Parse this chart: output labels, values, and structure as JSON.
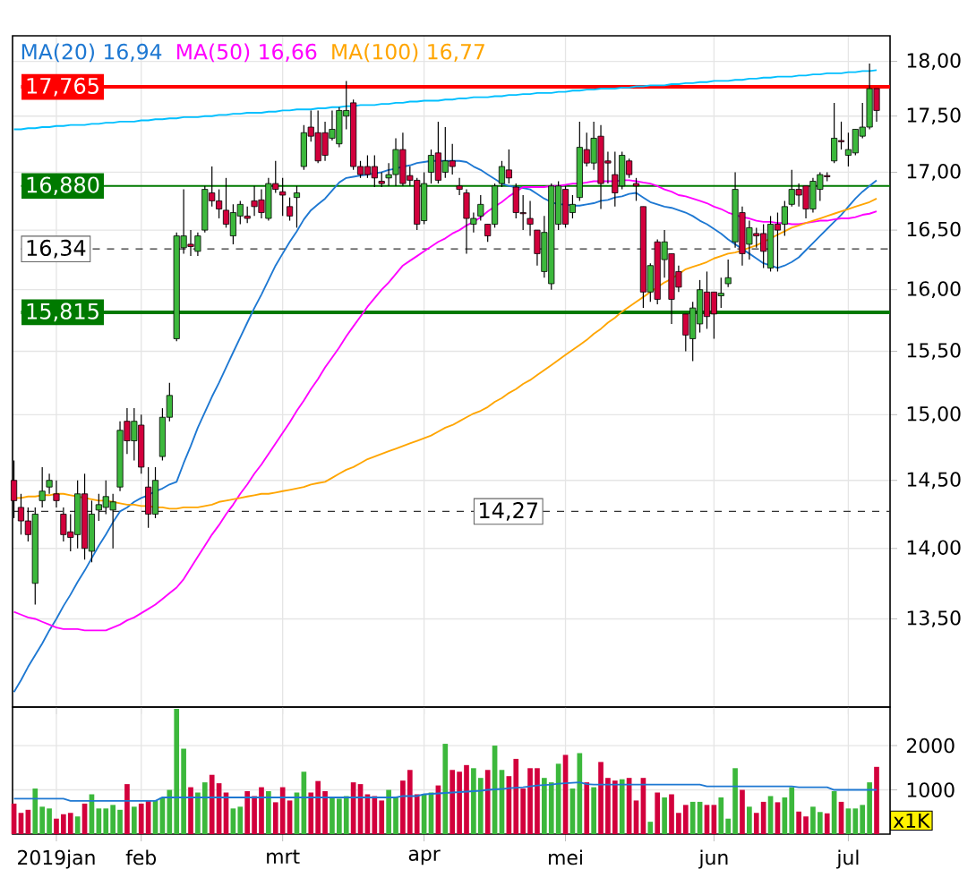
{
  "chart_data": [
    {
      "type": "candlestick",
      "log": true,
      "grid": true,
      "legend": "top left",
      "tick_labels": "y",
      "categories": [
        null,
        null,
        null,
        null,
        null,
        null,
        null,
        null,
        null,
        null,
        null,
        null,
        null,
        null,
        null,
        null,
        null,
        null,
        null,
        null,
        null,
        null,
        null,
        null,
        null,
        null,
        null,
        null,
        null,
        null,
        null,
        null,
        null,
        null,
        null,
        null,
        null,
        null,
        null,
        null,
        null,
        null,
        null,
        null,
        null,
        null,
        null,
        null,
        null,
        null,
        null,
        null,
        null,
        null,
        null,
        null,
        null,
        null,
        null,
        null,
        null,
        null,
        null,
        null,
        null,
        null,
        null,
        null,
        null,
        null,
        null,
        null,
        null,
        null,
        null,
        null,
        null,
        null,
        null,
        null,
        null,
        null,
        null,
        null,
        null,
        null,
        null,
        null,
        null,
        null,
        null,
        null,
        null,
        null,
        null,
        null,
        null,
        null,
        null,
        null,
        null,
        null,
        null,
        null,
        null,
        null,
        null,
        null,
        null,
        null,
        null,
        null,
        null,
        null,
        null,
        null,
        null,
        null,
        null,
        null,
        null,
        null,
        null
      ],
      "ohlc": [
        [
          14.5,
          14.65,
          14.22,
          14.35
        ],
        [
          14.3,
          14.4,
          14.1,
          14.2
        ],
        [
          14.2,
          14.3,
          14.05,
          14.1
        ],
        [
          13.75,
          14.3,
          13.6,
          14.25
        ],
        [
          14.35,
          14.6,
          14.3,
          14.42
        ],
        [
          14.45,
          14.55,
          14.4,
          14.5
        ],
        [
          14.4,
          14.5,
          14.3,
          14.35
        ],
        [
          14.25,
          14.3,
          14.05,
          14.1
        ],
        [
          14.12,
          14.25,
          13.98,
          14.08
        ],
        [
          14.1,
          14.5,
          14.0,
          14.4
        ],
        [
          14.4,
          14.55,
          13.92,
          14.0
        ],
        [
          13.98,
          14.35,
          13.9,
          14.25
        ],
        [
          14.28,
          14.4,
          14.2,
          14.32
        ],
        [
          14.3,
          14.5,
          14.25,
          14.38
        ],
        [
          14.28,
          14.4,
          14.0,
          14.34
        ],
        [
          14.45,
          14.95,
          14.42,
          14.88
        ],
        [
          14.95,
          15.05,
          14.7,
          14.8
        ],
        [
          14.8,
          15.05,
          14.65,
          14.95
        ],
        [
          14.92,
          15.0,
          14.55,
          14.6
        ],
        [
          14.45,
          14.6,
          14.15,
          14.25
        ],
        [
          14.25,
          14.6,
          14.22,
          14.5
        ],
        [
          14.68,
          15.05,
          14.65,
          14.98
        ],
        [
          14.98,
          15.25,
          14.95,
          15.15
        ],
        [
          15.6,
          16.48,
          15.58,
          16.45
        ],
        [
          16.35,
          16.85,
          16.3,
          16.45
        ],
        [
          16.38,
          16.5,
          16.28,
          16.36
        ],
        [
          16.32,
          16.48,
          16.28,
          16.45
        ],
        [
          16.5,
          16.88,
          16.48,
          16.85
        ],
        [
          16.82,
          17.05,
          16.7,
          16.75
        ],
        [
          16.75,
          16.85,
          16.6,
          16.68
        ],
        [
          16.67,
          16.95,
          16.52,
          16.55
        ],
        [
          16.45,
          16.72,
          16.38,
          16.65
        ],
        [
          16.62,
          16.75,
          16.55,
          16.72
        ],
        [
          16.62,
          16.7,
          16.56,
          16.6
        ],
        [
          16.75,
          16.88,
          16.62,
          16.7
        ],
        [
          16.76,
          16.85,
          16.6,
          16.65
        ],
        [
          16.6,
          16.95,
          16.58,
          16.9
        ],
        [
          16.9,
          17.1,
          16.82,
          16.85
        ],
        [
          16.83,
          16.95,
          16.62,
          16.8
        ],
        [
          16.7,
          16.78,
          16.58,
          16.62
        ],
        [
          16.78,
          16.88,
          16.52,
          16.82
        ],
        [
          17.05,
          17.42,
          17.02,
          17.35
        ],
        [
          17.4,
          17.55,
          17.27,
          17.32
        ],
        [
          17.35,
          17.55,
          17.08,
          17.1
        ],
        [
          17.35,
          17.45,
          17.1,
          17.15
        ],
        [
          17.3,
          17.55,
          17.28,
          17.38
        ],
        [
          17.25,
          17.58,
          17.22,
          17.55
        ],
        [
          17.5,
          17.82,
          17.38,
          17.55
        ],
        [
          17.62,
          17.65,
          17.02,
          17.05
        ],
        [
          17.05,
          17.1,
          16.95,
          16.98
        ],
        [
          17.05,
          17.15,
          16.95,
          16.98
        ],
        [
          17.05,
          17.15,
          16.87,
          16.95
        ],
        [
          16.92,
          17.0,
          16.87,
          16.9
        ],
        [
          16.95,
          17.08,
          16.88,
          16.98
        ],
        [
          16.98,
          17.3,
          16.88,
          17.2
        ],
        [
          17.2,
          17.35,
          16.88,
          16.9
        ],
        [
          16.97,
          17.05,
          16.88,
          16.93
        ],
        [
          16.93,
          16.95,
          16.5,
          16.55
        ],
        [
          16.58,
          17.0,
          16.55,
          16.9
        ],
        [
          17.0,
          17.2,
          16.9,
          17.15
        ],
        [
          17.17,
          17.45,
          16.9,
          16.93
        ],
        [
          17.0,
          17.4,
          16.95,
          17.1
        ],
        [
          17.1,
          17.25,
          16.98,
          17.05
        ],
        [
          16.88,
          16.95,
          16.8,
          16.85
        ],
        [
          16.82,
          16.85,
          16.3,
          16.6
        ],
        [
          16.55,
          16.65,
          16.48,
          16.6
        ],
        [
          16.62,
          16.8,
          16.58,
          16.72
        ],
        [
          16.55,
          16.55,
          16.4,
          16.45
        ],
        [
          16.55,
          16.9,
          16.52,
          16.88
        ],
        [
          16.9,
          17.1,
          16.87,
          17.05
        ],
        [
          17.02,
          17.2,
          16.9,
          16.95
        ],
        [
          16.87,
          16.9,
          16.6,
          16.65
        ],
        [
          16.65,
          16.8,
          16.5,
          16.64
        ],
        [
          16.6,
          16.75,
          16.45,
          16.55
        ],
        [
          16.5,
          16.5,
          16.2,
          16.3
        ],
        [
          16.15,
          16.62,
          16.1,
          16.48
        ],
        [
          16.05,
          16.9,
          16.0,
          16.88
        ],
        [
          16.55,
          16.92,
          16.5,
          16.88
        ],
        [
          16.85,
          16.88,
          16.52,
          16.55
        ],
        [
          16.65,
          16.8,
          16.6,
          16.72
        ],
        [
          16.78,
          17.45,
          16.75,
          17.22
        ],
        [
          17.2,
          17.35,
          17.05,
          17.08
        ],
        [
          17.08,
          17.45,
          17.02,
          17.3
        ],
        [
          17.32,
          17.42,
          16.68,
          16.9
        ],
        [
          17.1,
          17.18,
          16.9,
          17.08
        ],
        [
          16.98,
          17.18,
          16.7,
          16.82
        ],
        [
          16.88,
          17.18,
          16.85,
          17.15
        ],
        [
          17.1,
          17.12,
          16.95,
          16.98
        ],
        [
          16.9,
          16.95,
          16.75,
          16.88
        ],
        [
          16.7,
          16.7,
          15.85,
          15.98
        ],
        [
          15.98,
          16.22,
          15.9,
          16.2
        ],
        [
          16.4,
          16.42,
          15.88,
          15.92
        ],
        [
          16.25,
          16.5,
          16.1,
          16.4
        ],
        [
          16.3,
          16.3,
          15.72,
          15.92
        ],
        [
          16.15,
          16.2,
          15.98,
          16.02
        ],
        [
          15.8,
          15.8,
          15.5,
          15.63
        ],
        [
          15.6,
          15.9,
          15.42,
          15.85
        ],
        [
          15.72,
          16.08,
          15.65,
          16.0
        ],
        [
          15.98,
          16.15,
          15.68,
          15.78
        ],
        [
          15.98,
          15.98,
          15.6,
          15.8
        ],
        [
          15.95,
          16.1,
          15.85,
          15.97
        ],
        [
          16.05,
          16.25,
          16.02,
          16.1
        ],
        [
          16.4,
          17.0,
          16.35,
          16.85
        ],
        [
          16.65,
          16.7,
          16.2,
          16.3
        ],
        [
          16.38,
          16.58,
          16.25,
          16.52
        ],
        [
          16.47,
          16.52,
          16.35,
          16.45
        ],
        [
          16.47,
          16.55,
          16.18,
          16.32
        ],
        [
          16.18,
          16.62,
          16.15,
          16.55
        ],
        [
          16.55,
          16.65,
          16.15,
          16.5
        ],
        [
          16.55,
          16.75,
          16.45,
          16.7
        ],
        [
          16.72,
          17.02,
          16.7,
          16.85
        ],
        [
          16.85,
          16.9,
          16.7,
          16.8
        ],
        [
          16.88,
          16.88,
          16.6,
          16.68
        ],
        [
          16.68,
          16.95,
          16.65,
          16.92
        ],
        [
          16.85,
          17.0,
          16.75,
          16.98
        ],
        [
          16.97,
          17.0,
          16.92,
          16.96
        ],
        [
          17.1,
          17.62,
          17.08,
          17.3
        ],
        [
          17.28,
          17.45,
          17.2,
          17.27
        ],
        [
          17.15,
          17.35,
          17.05,
          17.2
        ],
        [
          17.17,
          17.38,
          17.15,
          17.38
        ],
        [
          17.32,
          17.62,
          17.3,
          17.4
        ],
        [
          17.4,
          17.98,
          17.38,
          17.75
        ],
        [
          17.75,
          17.75,
          17.45,
          17.55
        ]
      ],
      "colors": [
        "#d2003c",
        "#d2003c",
        "#d2003c",
        "#3cb83c",
        "#3cb83c",
        "#3cb83c",
        "#d2003c",
        "#d2003c",
        "#d2003c",
        "#3cb83c",
        "#d2003c",
        "#3cb83c",
        "#3cb83c",
        "#3cb83c",
        "#3cb83c",
        "#3cb83c",
        "#d2003c",
        "#3cb83c",
        "#d2003c",
        "#d2003c",
        "#3cb83c",
        "#3cb83c",
        "#3cb83c",
        "#3cb83c",
        "#3cb83c",
        "#d2003c",
        "#3cb83c",
        "#3cb83c",
        "#d2003c",
        "#d2003c",
        "#d2003c",
        "#3cb83c",
        "#3cb83c",
        "#d2003c",
        "#d2003c",
        "#d2003c",
        "#3cb83c",
        "#d2003c",
        "#d2003c",
        "#d2003c",
        "#3cb83c",
        "#3cb83c",
        "#d2003c",
        "#d2003c",
        "#d2003c",
        "#3cb83c",
        "#3cb83c",
        "#3cb83c",
        "#d2003c",
        "#d2003c",
        "#d2003c",
        "#d2003c",
        "#d2003c",
        "#3cb83c",
        "#3cb83c",
        "#d2003c",
        "#d2003c",
        "#d2003c",
        "#3cb83c",
        "#3cb83c",
        "#d2003c",
        "#3cb83c",
        "#d2003c",
        "#d2003c",
        "#d2003c",
        "#3cb83c",
        "#3cb83c",
        "#d2003c",
        "#3cb83c",
        "#3cb83c",
        "#d2003c",
        "#d2003c",
        "#d2003c",
        "#d2003c",
        "#d2003c",
        "#3cb83c",
        "#3cb83c",
        "#3cb83c",
        "#d2003c",
        "#3cb83c",
        "#3cb83c",
        "#d2003c",
        "#3cb83c",
        "#d2003c",
        "#d2003c",
        "#d2003c",
        "#3cb83c",
        "#d2003c",
        "#d2003c",
        "#d2003c",
        "#3cb83c",
        "#d2003c",
        "#3cb83c",
        "#d2003c",
        "#d2003c",
        "#d2003c",
        "#3cb83c",
        "#3cb83c",
        "#d2003c",
        "#d2003c",
        "#3cb83c",
        "#3cb83c",
        "#3cb83c",
        "#d2003c",
        "#3cb83c",
        "#d2003c",
        "#d2003c",
        "#3cb83c",
        "#d2003c",
        "#3cb83c",
        "#3cb83c",
        "#d2003c",
        "#d2003c",
        "#3cb83c",
        "#3cb83c",
        "#d2003c",
        "#3cb83c",
        "#d2003c",
        "#3cb83c",
        "#3cb83c",
        "#3cb83c",
        "#3cb83c",
        "#d2003c"
      ],
      "series": [
        {
          "type": "line",
          "name": "MA(20) 16,94",
          "color": "#1e78d2",
          "values": [
            13.0,
            13.08,
            13.17,
            13.25,
            13.33,
            13.42,
            13.5,
            13.59,
            13.67,
            13.76,
            13.84,
            13.93,
            14.02,
            14.1,
            14.19,
            14.27,
            14.3,
            14.34,
            14.37,
            14.39,
            14.42,
            14.44,
            14.47,
            14.49,
            14.63,
            14.76,
            14.9,
            15.02,
            15.14,
            15.25,
            15.37,
            15.49,
            15.61,
            15.73,
            15.85,
            15.96,
            16.08,
            16.2,
            16.3,
            16.4,
            16.49,
            16.59,
            16.67,
            16.72,
            16.77,
            16.84,
            16.91,
            16.95,
            16.96,
            16.97,
            16.98,
            16.99,
            17.0,
            17.02,
            17.03,
            17.05,
            17.06,
            17.08,
            17.09,
            17.1,
            17.1,
            17.1,
            17.1,
            17.1,
            17.09,
            17.05,
            17.02,
            16.98,
            16.94,
            16.9,
            16.88,
            16.87,
            16.86,
            16.85,
            16.81,
            16.77,
            16.74,
            16.72,
            16.72,
            16.71,
            16.71,
            16.72,
            16.73,
            16.75,
            16.76,
            16.78,
            16.79,
            16.81,
            16.82,
            16.78,
            16.74,
            16.72,
            16.7,
            16.69,
            16.67,
            16.65,
            16.62,
            16.58,
            16.55,
            16.51,
            16.47,
            16.42,
            16.38,
            16.34,
            16.3,
            16.26,
            16.22,
            16.2,
            16.18,
            16.2,
            16.23,
            16.27,
            16.33,
            16.39,
            16.45,
            16.51,
            16.57,
            16.63,
            16.7,
            16.77,
            16.83,
            16.88,
            16.93
          ]
        },
        {
          "type": "line",
          "name": "MA(50) 16,66",
          "color": "#ff00ff",
          "values": [
            13.55,
            13.53,
            13.51,
            13.5,
            13.48,
            13.46,
            13.44,
            13.43,
            13.43,
            13.43,
            13.42,
            13.42,
            13.42,
            13.42,
            13.44,
            13.46,
            13.49,
            13.51,
            13.54,
            13.57,
            13.6,
            13.64,
            13.68,
            13.72,
            13.78,
            13.86,
            13.94,
            14.02,
            14.1,
            14.17,
            14.25,
            14.32,
            14.4,
            14.47,
            14.55,
            14.62,
            14.7,
            14.78,
            14.86,
            14.94,
            15.03,
            15.11,
            15.2,
            15.28,
            15.37,
            15.45,
            15.53,
            15.62,
            15.7,
            15.78,
            15.86,
            15.93,
            16.0,
            16.06,
            16.13,
            16.2,
            16.24,
            16.28,
            16.32,
            16.36,
            16.4,
            16.43,
            16.47,
            16.5,
            16.54,
            16.57,
            16.61,
            16.66,
            16.7,
            16.74,
            16.79,
            16.83,
            16.87,
            16.87,
            16.87,
            16.87,
            16.88,
            16.88,
            16.89,
            16.9,
            16.9,
            16.91,
            16.92,
            16.92,
            16.92,
            16.92,
            16.93,
            16.93,
            16.92,
            16.91,
            16.9,
            16.88,
            16.85,
            16.83,
            16.8,
            16.79,
            16.77,
            16.75,
            16.73,
            16.7,
            16.68,
            16.65,
            16.63,
            16.61,
            16.6,
            16.58,
            16.57,
            16.57,
            16.56,
            16.56,
            16.55,
            16.55,
            16.56,
            16.57,
            16.58,
            16.58,
            16.59,
            16.6,
            16.6,
            16.61,
            16.63,
            16.64,
            16.66
          ]
        },
        {
          "type": "line",
          "name": "MA(100) 16,77",
          "color": "#ffa500",
          "values": [
            14.37,
            14.37,
            14.38,
            14.38,
            14.39,
            14.39,
            14.4,
            14.4,
            14.39,
            14.38,
            14.37,
            14.36,
            14.35,
            14.35,
            14.34,
            14.33,
            14.32,
            14.32,
            14.31,
            14.31,
            14.3,
            14.3,
            14.29,
            14.29,
            14.3,
            14.3,
            14.3,
            14.31,
            14.32,
            14.34,
            14.35,
            14.36,
            14.37,
            14.38,
            14.39,
            14.4,
            14.4,
            14.41,
            14.42,
            14.43,
            14.44,
            14.45,
            14.47,
            14.48,
            14.49,
            14.52,
            14.55,
            14.58,
            14.6,
            14.63,
            14.66,
            14.68,
            14.7,
            14.72,
            14.74,
            14.76,
            14.78,
            14.8,
            14.82,
            14.84,
            14.87,
            14.9,
            14.92,
            14.95,
            14.98,
            15.01,
            15.03,
            15.06,
            15.1,
            15.13,
            15.17,
            15.2,
            15.24,
            15.27,
            15.31,
            15.35,
            15.39,
            15.43,
            15.47,
            15.51,
            15.55,
            15.59,
            15.64,
            15.68,
            15.73,
            15.77,
            15.82,
            15.86,
            15.9,
            15.94,
            15.98,
            16.02,
            16.06,
            16.09,
            16.13,
            16.17,
            16.19,
            16.21,
            16.23,
            16.26,
            16.28,
            16.3,
            16.31,
            16.33,
            16.35,
            16.37,
            16.4,
            16.43,
            16.46,
            16.49,
            16.52,
            16.54,
            16.56,
            16.58,
            16.6,
            16.62,
            16.64,
            16.66,
            16.68,
            16.7,
            16.72,
            16.74,
            16.77
          ]
        },
        {
          "type": "line",
          "color": "#00bfff",
          "values": [
            17.38,
            17.38,
            17.39,
            17.39,
            17.4,
            17.4,
            17.41,
            17.41,
            17.42,
            17.42,
            17.42,
            17.43,
            17.43,
            17.44,
            17.44,
            17.45,
            17.45,
            17.45,
            17.46,
            17.46,
            17.47,
            17.47,
            17.48,
            17.48,
            17.49,
            17.49,
            17.49,
            17.5,
            17.5,
            17.51,
            17.51,
            17.52,
            17.52,
            17.53,
            17.53,
            17.53,
            17.54,
            17.54,
            17.55,
            17.55,
            17.56,
            17.56,
            17.56,
            17.57,
            17.57,
            17.58,
            17.58,
            17.59,
            17.59,
            17.6,
            17.6,
            17.6,
            17.61,
            17.61,
            17.62,
            17.62,
            17.63,
            17.63,
            17.64,
            17.64,
            17.64,
            17.65,
            17.65,
            17.66,
            17.66,
            17.67,
            17.67,
            17.67,
            17.68,
            17.68,
            17.69,
            17.69,
            17.7,
            17.7,
            17.71,
            17.71,
            17.71,
            17.72,
            17.72,
            17.73,
            17.73,
            17.74,
            17.74,
            17.75,
            17.75,
            17.75,
            17.76,
            17.76,
            17.77,
            17.77,
            17.78,
            17.78,
            17.78,
            17.79,
            17.79,
            17.8,
            17.8,
            17.81,
            17.81,
            17.82,
            17.82,
            17.82,
            17.83,
            17.83,
            17.84,
            17.84,
            17.85,
            17.85,
            17.86,
            17.86,
            17.86,
            17.87,
            17.87,
            17.88,
            17.88,
            17.89,
            17.89,
            17.89,
            17.9,
            17.9,
            17.91,
            17.91,
            17.92
          ]
        }
      ],
      "ylim": [
        12.9,
        18.24
      ],
      "yticks": [
        {
          "value": 13.5,
          "label": "13,50"
        },
        {
          "value": 14,
          "label": "14,00"
        },
        {
          "value": 14.5,
          "label": "14,50"
        },
        {
          "value": 15,
          "label": "15,00"
        },
        {
          "value": 15.5,
          "label": "15,50"
        },
        {
          "value": 16,
          "label": "16,00"
        },
        {
          "value": 16.5,
          "label": "16,50"
        },
        {
          "value": 17,
          "label": "17,00"
        },
        {
          "value": 17.5,
          "label": "17,50"
        },
        {
          "value": 18,
          "label": "18,00"
        }
      ],
      "ref_lines": [
        {
          "axis": "y",
          "value": 17.765,
          "label": "17,765",
          "color": "#ff0000"
        },
        {
          "axis": "y",
          "value": 16.88,
          "label": "16,880",
          "color": "#007a00"
        },
        {
          "axis": "y",
          "value": 15.815,
          "label": "15,815",
          "color": "#007a00"
        },
        {
          "axis": "y",
          "value": 16.34,
          "label": "16,34",
          "color": "#333333",
          "line_style": "dashed"
        },
        {
          "axis": "y",
          "value": 14.27,
          "label": "14,27",
          "color": "#333333",
          "line_style": "dashed"
        }
      ]
    },
    {
      "type": "bar",
      "grid": true,
      "categories": [
        null,
        null,
        null,
        null,
        null,
        null,
        "2019jan",
        null,
        null,
        null,
        null,
        null,
        null,
        null,
        null,
        null,
        null,
        null,
        "feb",
        null,
        null,
        null,
        null,
        null,
        null,
        null,
        null,
        null,
        null,
        null,
        null,
        null,
        null,
        null,
        null,
        null,
        null,
        null,
        "mrt",
        null,
        null,
        null,
        null,
        null,
        null,
        null,
        null,
        null,
        null,
        null,
        null,
        null,
        null,
        null,
        null,
        null,
        null,
        null,
        "apr",
        null,
        null,
        null,
        null,
        null,
        null,
        null,
        null,
        null,
        null,
        null,
        null,
        null,
        null,
        null,
        null,
        null,
        null,
        null,
        "mei",
        null,
        null,
        null,
        null,
        null,
        null,
        null,
        null,
        null,
        null,
        null,
        null,
        null,
        null,
        null,
        null,
        null,
        null,
        null,
        null,
        "jun",
        null,
        null,
        null,
        null,
        null,
        null,
        null,
        null,
        null,
        null,
        null,
        null,
        null,
        null,
        null,
        null,
        null,
        null,
        "jul",
        null,
        null,
        null,
        null
      ],
      "series": [
        {
          "type": "bar",
          "values": [
            690,
            480,
            550,
            1030,
            620,
            580,
            350,
            450,
            480,
            400,
            690,
            900,
            580,
            580,
            660,
            550,
            1130,
            620,
            690,
            760,
            760,
            830,
            1000,
            2830,
            1930,
            1060,
            940,
            1170,
            1340,
            1150,
            940,
            580,
            620,
            970,
            860,
            1060,
            970,
            720,
            1060,
            760,
            940,
            1410,
            940,
            1200,
            970,
            830,
            800,
            860,
            1170,
            1130,
            900,
            860,
            760,
            1000,
            830,
            1210,
            1450,
            900,
            900,
            940,
            1100,
            2040,
            1450,
            1410,
            1560,
            1490,
            1270,
            1450,
            2000,
            1450,
            1310,
            1700,
            1030,
            1490,
            1490,
            1270,
            1170,
            1590,
            1790,
            1030,
            1830,
            1170,
            1060,
            1630,
            1270,
            1210,
            1240,
            1270,
            760,
            1270,
            280,
            940,
            830,
            900,
            480,
            660,
            730,
            730,
            660,
            660,
            830,
            350,
            1490,
            1000,
            620,
            480,
            730,
            860,
            720,
            830,
            1060,
            510,
            400,
            620,
            500,
            470,
            970,
            730,
            580,
            580,
            660,
            1170,
            1520
          ],
          "colors": [
            "#d2003c",
            "#d2003c",
            "#d2003c",
            "#3cb83c",
            "#3cb83c",
            "#3cb83c",
            "#d2003c",
            "#d2003c",
            "#d2003c",
            "#3cb83c",
            "#d2003c",
            "#3cb83c",
            "#3cb83c",
            "#3cb83c",
            "#3cb83c",
            "#3cb83c",
            "#d2003c",
            "#3cb83c",
            "#d2003c",
            "#d2003c",
            "#3cb83c",
            "#3cb83c",
            "#3cb83c",
            "#3cb83c",
            "#3cb83c",
            "#d2003c",
            "#3cb83c",
            "#3cb83c",
            "#d2003c",
            "#d2003c",
            "#d2003c",
            "#3cb83c",
            "#3cb83c",
            "#d2003c",
            "#d2003c",
            "#d2003c",
            "#3cb83c",
            "#d2003c",
            "#d2003c",
            "#d2003c",
            "#3cb83c",
            "#3cb83c",
            "#d2003c",
            "#d2003c",
            "#d2003c",
            "#3cb83c",
            "#3cb83c",
            "#3cb83c",
            "#d2003c",
            "#d2003c",
            "#d2003c",
            "#d2003c",
            "#d2003c",
            "#3cb83c",
            "#3cb83c",
            "#d2003c",
            "#d2003c",
            "#d2003c",
            "#3cb83c",
            "#3cb83c",
            "#d2003c",
            "#3cb83c",
            "#d2003c",
            "#d2003c",
            "#d2003c",
            "#3cb83c",
            "#3cb83c",
            "#d2003c",
            "#3cb83c",
            "#3cb83c",
            "#d2003c",
            "#d2003c",
            "#d2003c",
            "#d2003c",
            "#d2003c",
            "#3cb83c",
            "#3cb83c",
            "#3cb83c",
            "#d2003c",
            "#3cb83c",
            "#3cb83c",
            "#d2003c",
            "#3cb83c",
            "#d2003c",
            "#d2003c",
            "#d2003c",
            "#3cb83c",
            "#d2003c",
            "#d2003c",
            "#d2003c",
            "#3cb83c",
            "#d2003c",
            "#3cb83c",
            "#d2003c",
            "#d2003c",
            "#d2003c",
            "#3cb83c",
            "#3cb83c",
            "#d2003c",
            "#d2003c",
            "#3cb83c",
            "#3cb83c",
            "#3cb83c",
            "#d2003c",
            "#3cb83c",
            "#d2003c",
            "#d2003c",
            "#3cb83c",
            "#d2003c",
            "#3cb83c",
            "#3cb83c",
            "#d2003c",
            "#d2003c",
            "#3cb83c",
            "#3cb83c",
            "#d2003c",
            "#3cb83c",
            "#d2003c",
            "#3cb83c",
            "#3cb83c",
            "#3cb83c",
            "#3cb83c",
            "#d2003c"
          ]
        },
        {
          "type": "line",
          "color": "#1e78d2",
          "values": [
            800,
            800,
            800,
            800,
            800,
            800,
            800,
            800,
            750,
            750,
            750,
            750,
            750,
            750,
            750,
            750,
            750,
            750,
            750,
            750,
            750,
            830,
            830,
            830,
            830,
            830,
            830,
            830,
            830,
            830,
            830,
            830,
            830,
            830,
            830,
            830,
            830,
            830,
            830,
            830,
            830,
            830,
            830,
            830,
            830,
            830,
            830,
            830,
            830,
            830,
            830,
            830,
            830,
            830,
            830,
            860,
            860,
            860,
            900,
            910,
            920,
            930,
            940,
            950,
            960,
            970,
            980,
            1000,
            1010,
            1020,
            1040,
            1050,
            1060,
            1080,
            1100,
            1110,
            1120,
            1140,
            1150,
            1160,
            1170,
            1130,
            1120,
            1120,
            1120,
            1120,
            1120,
            1120,
            1120,
            1120,
            1120,
            1120,
            1120,
            1120,
            1120,
            1120,
            1120,
            1120,
            1080,
            1080,
            1080,
            1080,
            1080,
            1080,
            1080,
            1080,
            1080,
            1080,
            1080,
            1080,
            1080,
            1060,
            1060,
            1060,
            1060,
            1060,
            1000,
            1000,
            1000,
            1000,
            1000,
            1000,
            1000
          ]
        }
      ],
      "ylim": [
        0,
        2870
      ],
      "yticks": [
        1000,
        2000
      ],
      "annotations": [
        "x1K"
      ]
    }
  ]
}
